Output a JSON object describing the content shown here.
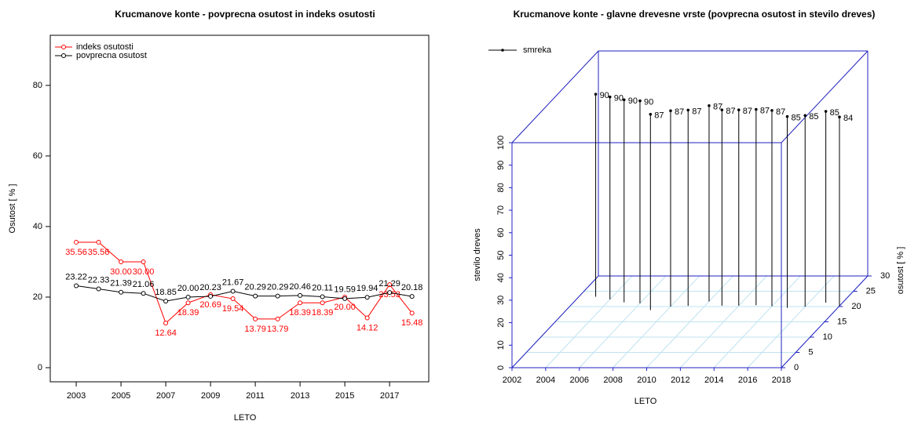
{
  "chart_data": [
    {
      "type": "line",
      "title": "Krucmanove konte - povprecna osutost in indeks osutosti",
      "xlabel": "LETO",
      "ylabel": "Osutost [ % ]",
      "x": [
        2003,
        2004,
        2005,
        2006,
        2007,
        2008,
        2009,
        2010,
        2011,
        2012,
        2013,
        2014,
        2015,
        2016,
        2017,
        2018
      ],
      "series": [
        {
          "name": "indeks osutosti",
          "color": "#ff0000",
          "values": [
            35.56,
            35.56,
            30.0,
            30.0,
            12.64,
            18.39,
            20.69,
            19.54,
            13.79,
            13.79,
            18.39,
            18.39,
            20.0,
            14.12,
            23.53,
            15.48
          ],
          "value_labels": [
            "35.56",
            "35.56",
            "30.00",
            "30.00",
            "12.64",
            "18.39",
            "20.69",
            "19.54",
            "13.79",
            "13.79",
            "18.39",
            "18.39",
            "20.00",
            "14.12",
            "23.53",
            "15.48"
          ]
        },
        {
          "name": "povprecna osutost",
          "color": "#000000",
          "values": [
            23.22,
            22.33,
            21.39,
            21.06,
            18.85,
            20.0,
            20.23,
            21.67,
            20.29,
            20.29,
            20.46,
            20.11,
            19.59,
            19.94,
            21.29,
            20.18
          ],
          "value_labels": [
            "23.22",
            "22.33",
            "21.39",
            "21.06",
            "18.85",
            "20.00",
            "20.23",
            "21.67",
            "20.29",
            "20.29",
            "20.46",
            "20.11",
            "19.59",
            "19.94",
            "21.29",
            "20.18"
          ]
        }
      ],
      "xlim": [
        2001.84,
        2018.75
      ],
      "xticks": [
        2003,
        2005,
        2007,
        2009,
        2011,
        2013,
        2015,
        2017
      ],
      "ylim": [
        -4,
        94.2
      ],
      "yticks": [
        0,
        20,
        40,
        60,
        80
      ],
      "legend": "top-left"
    },
    {
      "type": "scatter3d",
      "title": "Krucmanove konte - glavne drevesne vrste (povprecna osutost in stevilo dreves)",
      "xlabel": "LETO",
      "ylabel": "stevilo dreves",
      "zlabel": "osutost [ % ]",
      "x": [
        2003,
        2004,
        2005,
        2006,
        2007,
        2008,
        2009,
        2010,
        2011,
        2012,
        2013,
        2014,
        2015,
        2016,
        2017,
        2018
      ],
      "series": [
        {
          "name": "smreka",
          "color": "#000000",
          "values": [
            90,
            90,
            90,
            90,
            87,
            87,
            87,
            87,
            87,
            87,
            87,
            87,
            85,
            85,
            85,
            84
          ],
          "z": [
            23.22,
            22.33,
            21.39,
            21.06,
            18.85,
            20.0,
            20.23,
            21.67,
            20.29,
            20.29,
            20.46,
            20.11,
            19.59,
            19.94,
            21.29,
            20.18
          ]
        }
      ],
      "xlim": [
        2002,
        2018
      ],
      "xticks": [
        2002,
        2004,
        2006,
        2008,
        2010,
        2012,
        2014,
        2016,
        2018
      ],
      "ylim": [
        0,
        100
      ],
      "yticks": [
        0,
        10,
        20,
        30,
        40,
        50,
        60,
        70,
        80,
        90,
        100
      ],
      "zlim": [
        0,
        30
      ],
      "zticks": [
        0,
        5,
        10,
        15,
        20,
        25,
        30
      ],
      "grid": true,
      "legend": "top-left"
    }
  ]
}
